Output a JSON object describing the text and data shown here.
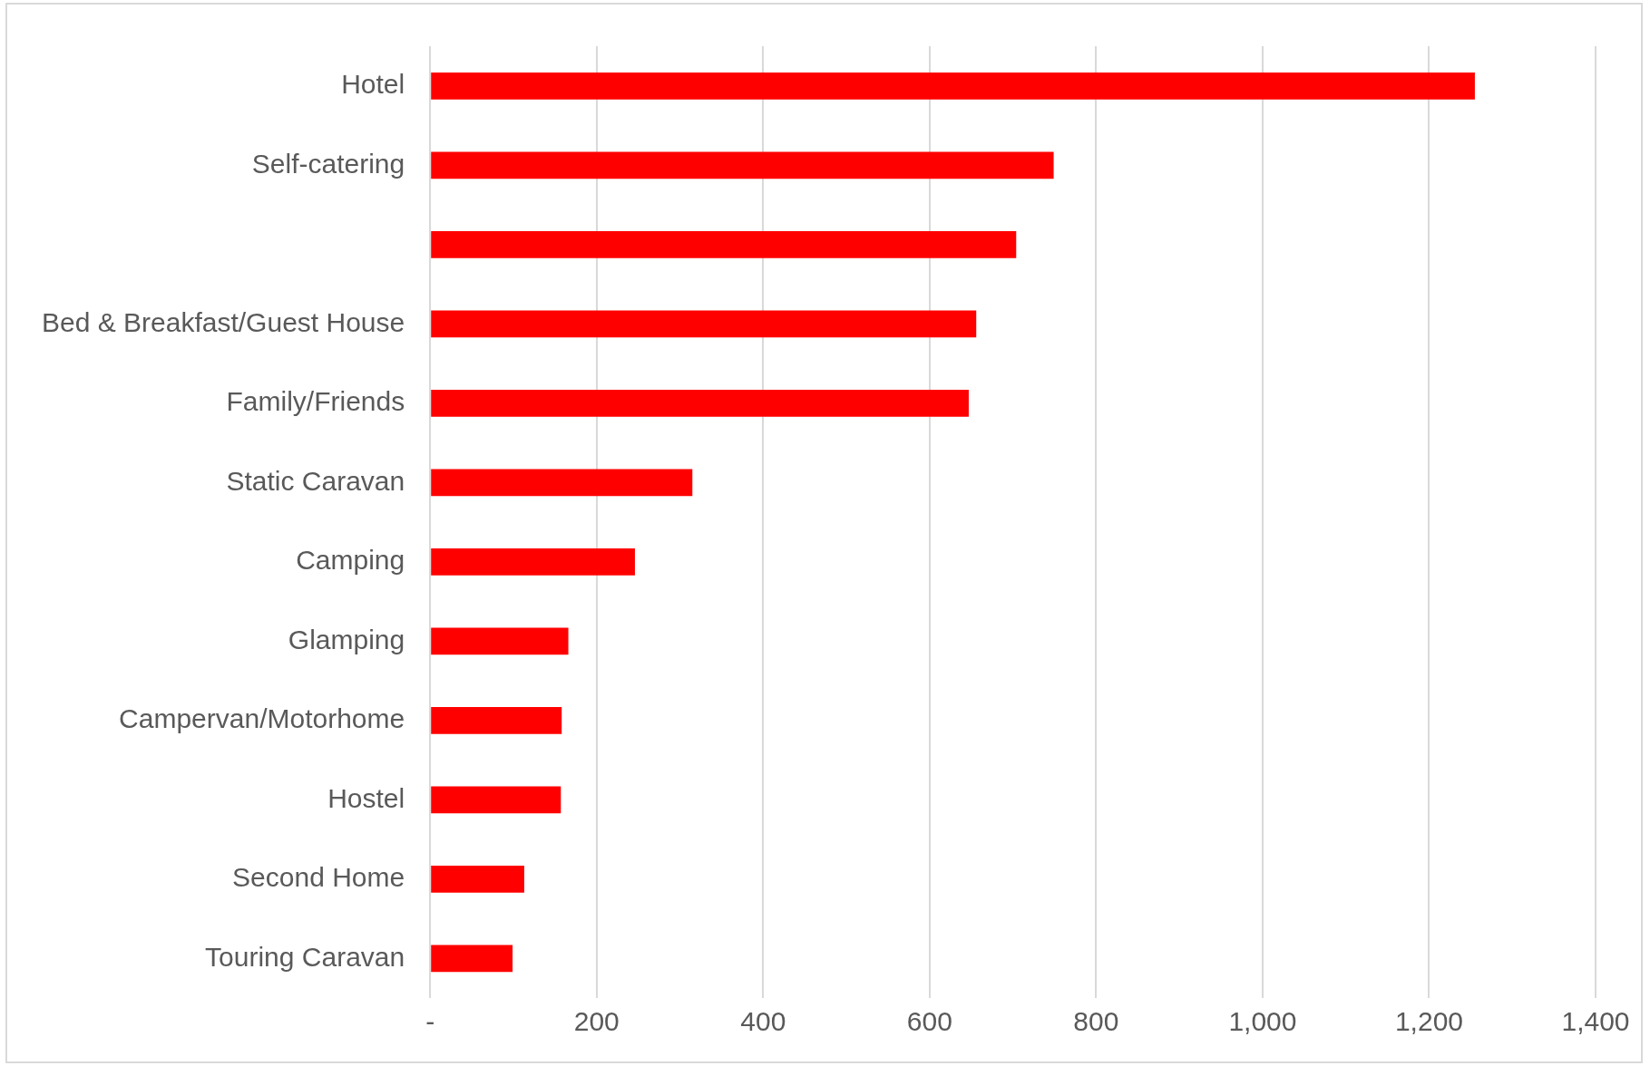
{
  "chart_data": {
    "type": "bar",
    "orientation": "horizontal",
    "categories": [
      "Hotel",
      "Self-catering",
      null,
      "Bed & Breakfast/Guest House",
      "Family/Friends",
      "Static Caravan",
      "Camping",
      "Glamping",
      "Campervan/Motorhome",
      "Hostel",
      "Second Home",
      "Touring Caravan"
    ],
    "values": [
      1255,
      749,
      704,
      656,
      647,
      315,
      246,
      166,
      158,
      157,
      113,
      99
    ],
    "color": "#ff0000",
    "xlim": [
      0,
      1400
    ],
    "xticks": [
      {
        "value": 0,
        "label": "-"
      },
      200,
      400,
      600,
      {
        "value": 800,
        "label": "800"
      },
      {
        "value": 1000,
        "label": "1,000"
      },
      {
        "value": 1200,
        "label": "1,200"
      },
      {
        "value": 1400,
        "label": "1,400"
      }
    ],
    "grid": "x",
    "legend": false
  }
}
